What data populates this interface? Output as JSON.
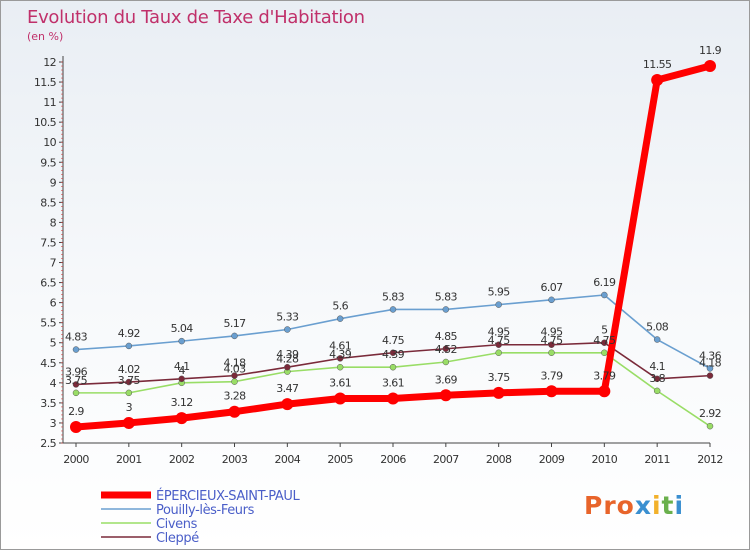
{
  "title": "Evolution du Taux de Taxe d'Habitation",
  "subtitle": "(en %)",
  "logo": [
    "Pro",
    "x",
    "i",
    "t",
    "i"
  ],
  "chart_data": {
    "type": "line",
    "x": [
      "2000",
      "2001",
      "2002",
      "2003",
      "2004",
      "2005",
      "2006",
      "2007",
      "2008",
      "2009",
      "2010",
      "2011",
      "2012"
    ],
    "ylim": [
      2.5,
      12
    ],
    "yticks": [
      "2.5",
      "3",
      "3.5",
      "4",
      "4.5",
      "5",
      "5.5",
      "6",
      "6.5",
      "7",
      "7.5",
      "8",
      "8.5",
      "9",
      "9.5",
      "10",
      "10.5",
      "11",
      "11.5",
      "12"
    ],
    "grid": false,
    "legend_position": "bottom-left",
    "series": [
      {
        "name": "ÉPERCIEUX-SAINT-PAUL",
        "color": "#ff0000",
        "values": [
          2.9,
          3,
          3.12,
          3.28,
          3.47,
          3.61,
          3.61,
          3.69,
          3.75,
          3.79,
          3.79,
          11.55,
          11.9
        ],
        "labels": [
          "2.9",
          "3",
          "3.12",
          "3.28",
          "3.47",
          "3.61",
          "3.61",
          "3.69",
          "3.75",
          "3.79",
          "3.79",
          "11.55",
          "11.9"
        ]
      },
      {
        "name": "Pouilly-lès-Feurs",
        "color": "#6a9fd0",
        "values": [
          4.83,
          4.92,
          5.04,
          5.17,
          5.33,
          5.6,
          5.83,
          5.83,
          5.95,
          6.07,
          6.19,
          5.08,
          4.36
        ],
        "labels": [
          "4.83",
          "4.92",
          "5.04",
          "5.17",
          "5.33",
          "5.6",
          "5.83",
          "5.83",
          "5.95",
          "6.07",
          "6.19",
          "5.08",
          "4.36"
        ]
      },
      {
        "name": "Civens",
        "color": "#99dd66",
        "values": [
          3.75,
          3.75,
          4.0,
          4.03,
          4.28,
          4.39,
          4.39,
          4.52,
          4.75,
          4.75,
          4.75,
          3.8,
          2.92
        ],
        "labels": [
          "3.75",
          "3.75",
          "4",
          "4.03",
          "4.28",
          "4.39",
          "4.39",
          "4.52",
          "4.75",
          "4.75",
          "4.75",
          "3.8",
          "2.92"
        ]
      },
      {
        "name": "Cleppé",
        "color": "#7a2a3a",
        "values": [
          3.96,
          4.02,
          4.1,
          4.18,
          4.39,
          4.61,
          4.75,
          4.85,
          4.95,
          4.95,
          5.0,
          4.1,
          4.18
        ],
        "labels": [
          "3.96",
          "4.02",
          "4.1",
          "4.18",
          "4.39",
          "4.61",
          "4.75",
          "4.85",
          "4.95",
          "4.95",
          "5",
          "4.1",
          "4.18"
        ]
      }
    ]
  }
}
